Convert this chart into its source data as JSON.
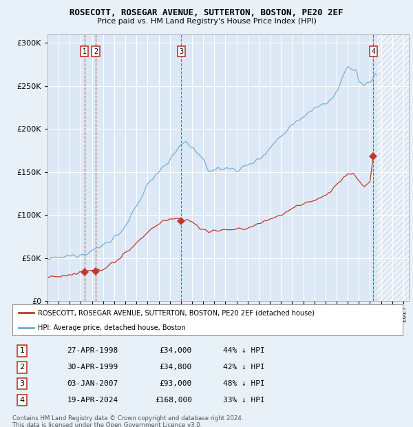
{
  "title": "ROSECOTT, ROSEGAR AVENUE, SUTTERTON, BOSTON, PE20 2EF",
  "subtitle": "Price paid vs. HM Land Registry's House Price Index (HPI)",
  "ylim": [
    0,
    310000
  ],
  "yticks": [
    0,
    50000,
    100000,
    150000,
    200000,
    250000,
    300000
  ],
  "ytick_labels": [
    "£0",
    "£50K",
    "£100K",
    "£150K",
    "£200K",
    "£250K",
    "£300K"
  ],
  "bg_color": "#e8f0f8",
  "plot_bg": "#dce8f5",
  "grid_color": "#ffffff",
  "hpi_color": "#6aaad4",
  "sale_color": "#c0392b",
  "sales": [
    {
      "date_num": 1998.32,
      "price": 34000,
      "label": "1"
    },
    {
      "date_num": 1999.33,
      "price": 34800,
      "label": "2"
    },
    {
      "date_num": 2007.01,
      "price": 93000,
      "label": "3"
    },
    {
      "date_num": 2024.3,
      "price": 168000,
      "label": "4"
    }
  ],
  "table_rows": [
    {
      "num": "1",
      "date": "27-APR-1998",
      "price": "£34,000",
      "pct": "44% ↓ HPI"
    },
    {
      "num": "2",
      "date": "30-APR-1999",
      "price": "£34,800",
      "pct": "42% ↓ HPI"
    },
    {
      "num": "3",
      "date": "03-JAN-2007",
      "price": "£93,000",
      "pct": "48% ↓ HPI"
    },
    {
      "num": "4",
      "date": "19-APR-2024",
      "price": "£168,000",
      "pct": "33% ↓ HPI"
    }
  ],
  "legend_line1": "ROSECOTT, ROSEGAR AVENUE, SUTTERTON, BOSTON, PE20 2EF (detached house)",
  "legend_line2": "HPI: Average price, detached house, Boston",
  "footer": "Contains HM Land Registry data © Crown copyright and database right 2024.\nThis data is licensed under the Open Government Licence v3.0.",
  "xmin": 1995.0,
  "xmax": 2027.5,
  "hatch_start": 2024.5
}
